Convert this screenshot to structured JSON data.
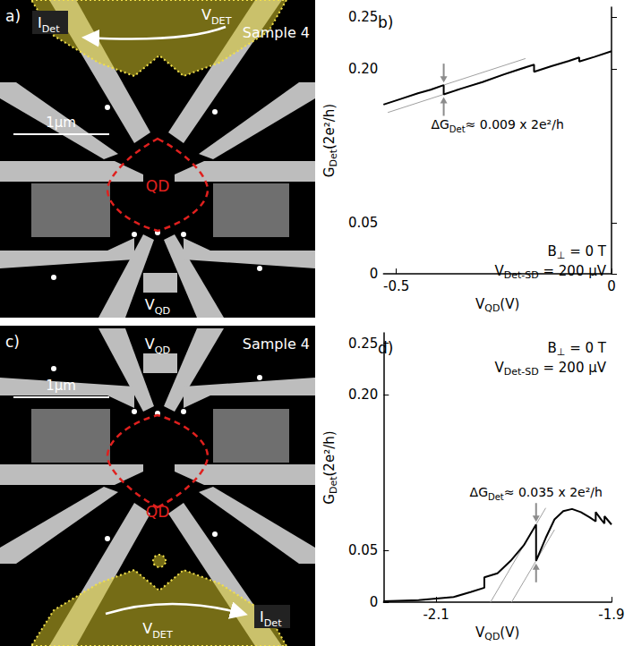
{
  "images": [
    {
      "letter": "a)",
      "sample": "Sample 4",
      "scale_bar": "1µm",
      "dot": "QD",
      "detector_side": "top",
      "gate_label": [
        {
          "text": "V"
        },
        {
          "text": "QD",
          "sub": true
        }
      ],
      "detector_voltage": [
        {
          "text": "V"
        },
        {
          "text": "DET",
          "sub": true
        }
      ],
      "detector_current": [
        {
          "text": "I"
        },
        {
          "text": "Det",
          "sub": true
        }
      ]
    },
    {
      "letter": "c)",
      "sample": "Sample 4",
      "scale_bar": "1µm",
      "dot": "QD",
      "detector_side": "bottom",
      "gate_label": [
        {
          "text": "V"
        },
        {
          "text": "QD",
          "sub": true
        }
      ],
      "detector_voltage": [
        {
          "text": "V"
        },
        {
          "text": "DET",
          "sub": true
        }
      ],
      "detector_current": [
        {
          "text": "I"
        },
        {
          "text": "Det",
          "sub": true
        }
      ]
    }
  ],
  "chart_data": [
    {
      "type": "line",
      "letter": "b)",
      "grid": false,
      "x_label": [
        {
          "text": "V"
        },
        {
          "text": "QD",
          "sub": true
        },
        {
          "text": "(V)"
        }
      ],
      "y_label": [
        {
          "text": "G"
        },
        {
          "text": "Det",
          "sub": true
        },
        {
          "text": "(2e²/h)"
        }
      ],
      "xlim": [
        -0.53,
        0
      ],
      "xticks": [
        -0.5,
        0
      ],
      "ylim": [
        0,
        0.26
      ],
      "yticks": [
        0,
        0.05,
        {
          "value": 0.2,
          "label": "0.20"
        },
        0.25
      ],
      "annotations": {
        "field": [
          {
            "text": "B"
          },
          {
            "text": "⊥",
            "sub": true
          },
          {
            "text": " = 0 T"
          }
        ],
        "bias": [
          {
            "text": "V"
          },
          {
            "text": "Det-SD",
            "sub": true
          },
          {
            "text": " = 200 µV"
          }
        ],
        "step": [
          {
            "text": "ΔG"
          },
          {
            "text": "Det",
            "sub": true
          },
          {
            "text": "≈ 0.009 x 2e²/h"
          }
        ]
      },
      "series": [
        {
          "color": "#000000",
          "values": [
            [
              -0.53,
              0.165
            ],
            [
              -0.49,
              0.1705
            ],
            [
              -0.45,
              0.176
            ],
            [
              -0.42,
              0.1795
            ],
            [
              -0.39,
              0.184
            ],
            [
              -0.39,
              0.175
            ],
            [
              -0.35,
              0.1805
            ],
            [
              -0.3,
              0.187
            ],
            [
              -0.25,
              0.1945
            ],
            [
              -0.21,
              0.2
            ],
            [
              -0.18,
              0.204
            ],
            [
              -0.18,
              0.197
            ],
            [
              -0.14,
              0.2025
            ],
            [
              -0.1,
              0.2075
            ],
            [
              -0.075,
              0.211
            ],
            [
              -0.075,
              0.207
            ],
            [
              -0.04,
              0.2115
            ],
            [
              0,
              0.217
            ]
          ]
        }
      ],
      "guides": [
        {
          "color": "#a0a0a0",
          "values": [
            [
              -0.52,
              0.1664
            ],
            [
              -0.2,
              0.2099
            ]
          ]
        },
        {
          "color": "#a0a0a0",
          "values": [
            [
              -0.52,
              0.1573
            ],
            [
              -0.2,
              0.2008
            ]
          ]
        }
      ]
    },
    {
      "type": "line",
      "letter": "d)",
      "grid": false,
      "x_label": [
        {
          "text": "V"
        },
        {
          "text": "QD",
          "sub": true
        },
        {
          "text": "(V)"
        }
      ],
      "y_label": [
        {
          "text": "G"
        },
        {
          "text": "Det",
          "sub": true
        },
        {
          "text": "(2e²/h)"
        }
      ],
      "xlim": [
        -2.16,
        -1.9
      ],
      "xticks": [
        -2.1,
        -1.9
      ],
      "ylim": [
        0,
        0.26
      ],
      "yticks": [
        0,
        0.05,
        {
          "value": 0.2,
          "label": "0.20"
        },
        0.25
      ],
      "annotations": {
        "field": [
          {
            "text": "B"
          },
          {
            "text": "⊥",
            "sub": true
          },
          {
            "text": " = 0 T"
          }
        ],
        "bias": [
          {
            "text": "V"
          },
          {
            "text": "Det-SD",
            "sub": true
          },
          {
            "text": " = 200 µV"
          }
        ],
        "step": [
          {
            "text": "ΔG"
          },
          {
            "text": "Det",
            "sub": true
          },
          {
            "text": "≈ 0.035 x 2e²/h"
          }
        ]
      },
      "series": [
        {
          "color": "#000000",
          "values": [
            [
              -2.16,
              0.001
            ],
            [
              -2.12,
              0.002
            ],
            [
              -2.08,
              0.005
            ],
            [
              -2.06,
              0.01
            ],
            [
              -2.045,
              0.014
            ],
            [
              -2.045,
              0.024
            ],
            [
              -2.03,
              0.028
            ],
            [
              -2.015,
              0.04
            ],
            [
              -2.0,
              0.055
            ],
            [
              -1.986,
              0.075
            ],
            [
              -1.986,
              0.04
            ],
            [
              -1.975,
              0.062
            ],
            [
              -1.965,
              0.08
            ],
            [
              -1.955,
              0.088
            ],
            [
              -1.945,
              0.09
            ],
            [
              -1.935,
              0.087
            ],
            [
              -1.925,
              0.082
            ],
            [
              -1.918,
              0.078
            ],
            [
              -1.918,
              0.087
            ],
            [
              -1.912,
              0.08
            ],
            [
              -1.908,
              0.076
            ],
            [
              -1.908,
              0.083
            ],
            [
              -1.9,
              0.075
            ]
          ]
        }
      ],
      "guides": [
        {
          "color": "#a0a0a0",
          "values": [
            [
              -2.038,
              0
            ],
            [
              -1.975,
              0.091
            ]
          ]
        },
        {
          "color": "#a0a0a0",
          "values": [
            [
              -2.014,
              0
            ],
            [
              -1.965,
              0.07
            ]
          ]
        }
      ]
    }
  ]
}
